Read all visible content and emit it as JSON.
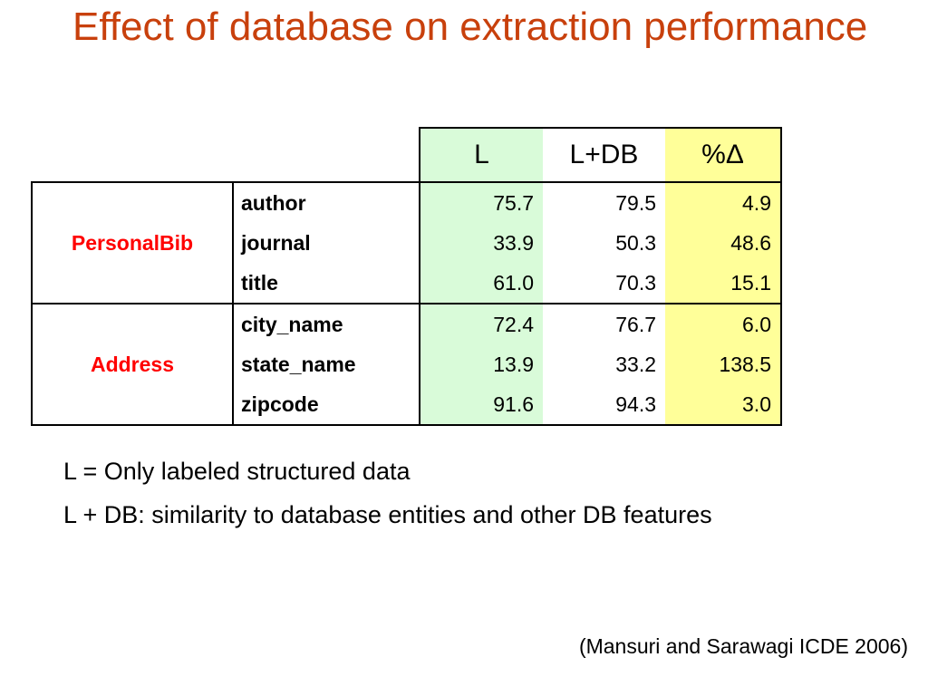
{
  "slide": {
    "title": "Effect of database on extraction performance"
  },
  "table": {
    "headers": [
      "L",
      "L+DB",
      "%Δ"
    ],
    "groups": [
      {
        "name": "PersonalBib",
        "rows": [
          {
            "field": "author",
            "L": "75.7",
            "LDB": "79.5",
            "pct": "4.9"
          },
          {
            "field": "journal",
            "L": "33.9",
            "LDB": "50.3",
            "pct": "48.6"
          },
          {
            "field": "title",
            "L": "61.0",
            "LDB": "70.3",
            "pct": "15.1"
          }
        ]
      },
      {
        "name": "Address",
        "rows": [
          {
            "field": "city_name",
            "L": "72.4",
            "LDB": "76.7",
            "pct": "6.0"
          },
          {
            "field": "state_name",
            "L": "13.9",
            "LDB": "33.2",
            "pct": "138.5"
          },
          {
            "field": "zipcode",
            "L": "91.6",
            "LDB": "94.3",
            "pct": "3.0"
          }
        ]
      }
    ]
  },
  "notes": [
    "L = Only labeled structured data",
    "L + DB: similarity to database entities and other DB features"
  ],
  "citation": "(Mansuri and Sarawagi ICDE 2006)",
  "colors": {
    "title": "#c8400c",
    "group_label": "#ff0000",
    "col_L_bg": "#d9fbd9",
    "col_pct_bg": "#ffff99"
  }
}
